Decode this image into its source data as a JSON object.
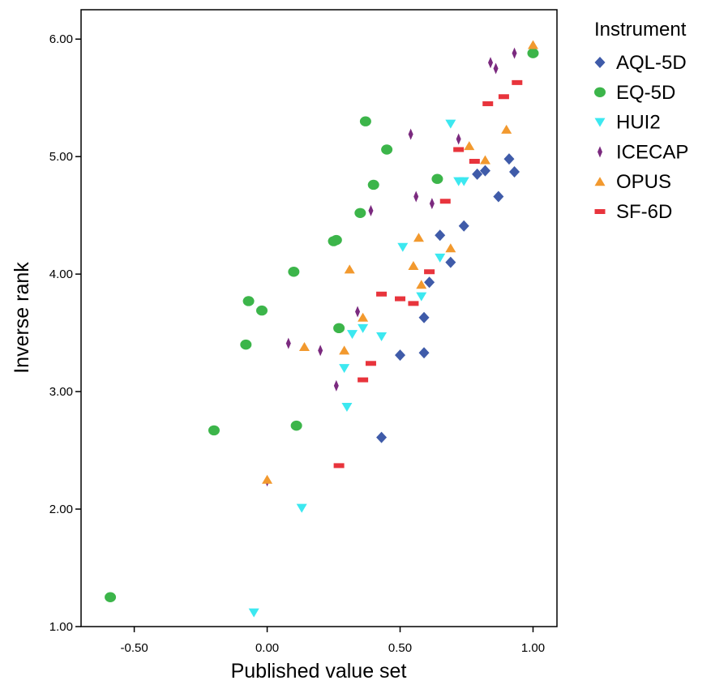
{
  "chart_data": {
    "type": "scatter",
    "xlabel": "Published value  set",
    "ylabel": "Inverse rank",
    "xlim": [
      -0.7,
      1.09
    ],
    "ylim": [
      1.0,
      6.25
    ],
    "xticks": [
      -0.5,
      0.0,
      0.5,
      1.0
    ],
    "xtick_labels": [
      "-0.50",
      "0.00",
      "0.50",
      "1.00"
    ],
    "yticks": [
      1.0,
      2.0,
      3.0,
      4.0,
      5.0,
      6.0
    ],
    "ytick_labels": [
      "1.00",
      "2.00",
      "3.00",
      "4.00",
      "5.00",
      "6.00"
    ],
    "grid": false,
    "legend": {
      "title": "Instrument",
      "position": "right"
    },
    "series": [
      {
        "name": "AQL-5D",
        "marker": "diamond",
        "color": "#3f5ba9",
        "points": [
          [
            0.43,
            2.61
          ],
          [
            0.5,
            3.31
          ],
          [
            0.59,
            3.33
          ],
          [
            0.59,
            3.63
          ],
          [
            0.61,
            3.93
          ],
          [
            0.65,
            4.33
          ],
          [
            0.69,
            4.1
          ],
          [
            0.74,
            4.41
          ],
          [
            0.79,
            4.85
          ],
          [
            0.82,
            4.88
          ],
          [
            0.87,
            4.66
          ],
          [
            0.91,
            4.98
          ],
          [
            0.93,
            4.87
          ]
        ]
      },
      {
        "name": "EQ-5D",
        "marker": "circle",
        "color": "#3cb54a",
        "points": [
          [
            -0.59,
            1.25
          ],
          [
            -0.2,
            2.67
          ],
          [
            -0.08,
            3.4
          ],
          [
            -0.07,
            3.77
          ],
          [
            -0.02,
            3.69
          ],
          [
            0.1,
            4.02
          ],
          [
            0.11,
            2.71
          ],
          [
            0.25,
            4.28
          ],
          [
            0.26,
            4.29
          ],
          [
            0.27,
            3.54
          ],
          [
            0.35,
            4.52
          ],
          [
            0.37,
            5.3
          ],
          [
            0.4,
            4.76
          ],
          [
            0.45,
            5.06
          ],
          [
            0.64,
            4.81
          ],
          [
            1.0,
            5.88
          ]
        ]
      },
      {
        "name": "HUI2",
        "marker": "triangle-down",
        "color": "#3ce8f0",
        "points": [
          [
            -0.05,
            1.12
          ],
          [
            0.13,
            2.01
          ],
          [
            0.29,
            3.2
          ],
          [
            0.3,
            2.87
          ],
          [
            0.32,
            3.49
          ],
          [
            0.36,
            3.54
          ],
          [
            0.43,
            3.47
          ],
          [
            0.51,
            4.23
          ],
          [
            0.58,
            3.81
          ],
          [
            0.65,
            4.14
          ],
          [
            0.69,
            5.28
          ],
          [
            0.72,
            4.79
          ],
          [
            0.74,
            4.79
          ]
        ]
      },
      {
        "name": "ICECAP",
        "marker": "thin-diamond",
        "color": "#7b2a7f",
        "points": [
          [
            0.0,
            2.24
          ],
          [
            0.08,
            3.41
          ],
          [
            0.2,
            3.35
          ],
          [
            0.26,
            3.05
          ],
          [
            0.34,
            3.68
          ],
          [
            0.39,
            4.54
          ],
          [
            0.54,
            5.19
          ],
          [
            0.56,
            4.66
          ],
          [
            0.62,
            4.6
          ],
          [
            0.72,
            5.15
          ],
          [
            0.84,
            5.8
          ],
          [
            0.86,
            5.75
          ],
          [
            0.93,
            5.88
          ]
        ]
      },
      {
        "name": "OPUS",
        "marker": "triangle-up",
        "color": "#f2992e",
        "points": [
          [
            0.0,
            2.25
          ],
          [
            0.14,
            3.38
          ],
          [
            0.29,
            3.35
          ],
          [
            0.31,
            4.04
          ],
          [
            0.36,
            3.63
          ],
          [
            0.55,
            4.07
          ],
          [
            0.57,
            4.31
          ],
          [
            0.58,
            3.91
          ],
          [
            0.69,
            4.22
          ],
          [
            0.76,
            5.09
          ],
          [
            0.82,
            4.97
          ],
          [
            0.9,
            5.23
          ],
          [
            1.0,
            5.95
          ]
        ]
      },
      {
        "name": "SF-6D",
        "marker": "dash",
        "color": "#e8343c",
        "points": [
          [
            0.27,
            2.37
          ],
          [
            0.36,
            3.1
          ],
          [
            0.39,
            3.24
          ],
          [
            0.43,
            3.83
          ],
          [
            0.5,
            3.79
          ],
          [
            0.55,
            3.75
          ],
          [
            0.61,
            4.02
          ],
          [
            0.67,
            4.62
          ],
          [
            0.72,
            5.06
          ],
          [
            0.78,
            4.96
          ],
          [
            0.83,
            5.45
          ],
          [
            0.89,
            5.51
          ],
          [
            0.94,
            5.63
          ]
        ]
      }
    ]
  }
}
